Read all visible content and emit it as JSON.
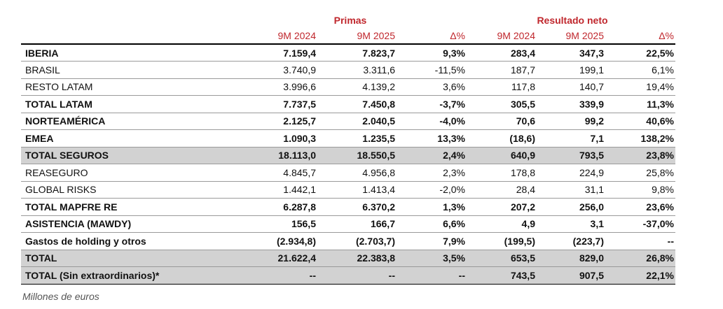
{
  "table": {
    "group_headers": [
      "Primas",
      "Resultado neto"
    ],
    "column_headers": [
      "9M 2024",
      "9M 2025",
      "Δ%",
      "9M 2024",
      "9M 2025",
      "Δ%"
    ],
    "rows": [
      [
        "IBERIA",
        "7.159,4",
        "7.823,7",
        "9,3%",
        "283,4",
        "347,3",
        "22,5%"
      ],
      [
        "BRASIL",
        "3.740,9",
        "3.311,6",
        "-11,5%",
        "187,7",
        "199,1",
        "6,1%"
      ],
      [
        "RESTO LATAM",
        "3.996,6",
        "4.139,2",
        "3,6%",
        "117,8",
        "140,7",
        "19,4%"
      ],
      [
        "TOTAL LATAM",
        "7.737,5",
        "7.450,8",
        "-3,7%",
        "305,5",
        "339,9",
        "11,3%"
      ],
      [
        "NORTEAMÉRICA",
        "2.125,7",
        "2.040,5",
        "-4,0%",
        "70,6",
        "99,2",
        "40,6%"
      ],
      [
        "EMEA",
        "1.090,3",
        "1.235,5",
        "13,3%",
        "(18,6)",
        "7,1",
        "138,2%"
      ],
      [
        "TOTAL SEGUROS",
        "18.113,0",
        "18.550,5",
        "2,4%",
        "640,9",
        "793,5",
        "23,8%"
      ],
      [
        "REASEGURO",
        "4.845,7",
        "4.956,8",
        "2,3%",
        "178,8",
        "224,9",
        "25,8%"
      ],
      [
        "GLOBAL RISKS",
        "1.442,1",
        "1.413,4",
        "-2,0%",
        "28,4",
        "31,1",
        "9,8%"
      ],
      [
        "TOTAL MAPFRE RE",
        "6.287,8",
        "6.370,2",
        "1,3%",
        "207,2",
        "256,0",
        "23,6%"
      ],
      [
        "ASISTENCIA (MAWDY)",
        "156,5",
        "166,7",
        "6,6%",
        "4,9",
        "3,1",
        "-37,0%"
      ],
      [
        "Gastos de holding y otros",
        "(2.934,8)",
        "(2.703,7)",
        "7,9%",
        "(199,5)",
        "(223,7)",
        "--"
      ],
      [
        "TOTAL",
        "21.622,4",
        "22.383,8",
        "3,5%",
        "653,5",
        "829,0",
        "26,8%"
      ],
      [
        "TOTAL (Sin extraordinarios)*",
        "--",
        "--",
        "--",
        "743,5",
        "907,5",
        "22,1%"
      ]
    ]
  },
  "footnote": "Millones de euros"
}
